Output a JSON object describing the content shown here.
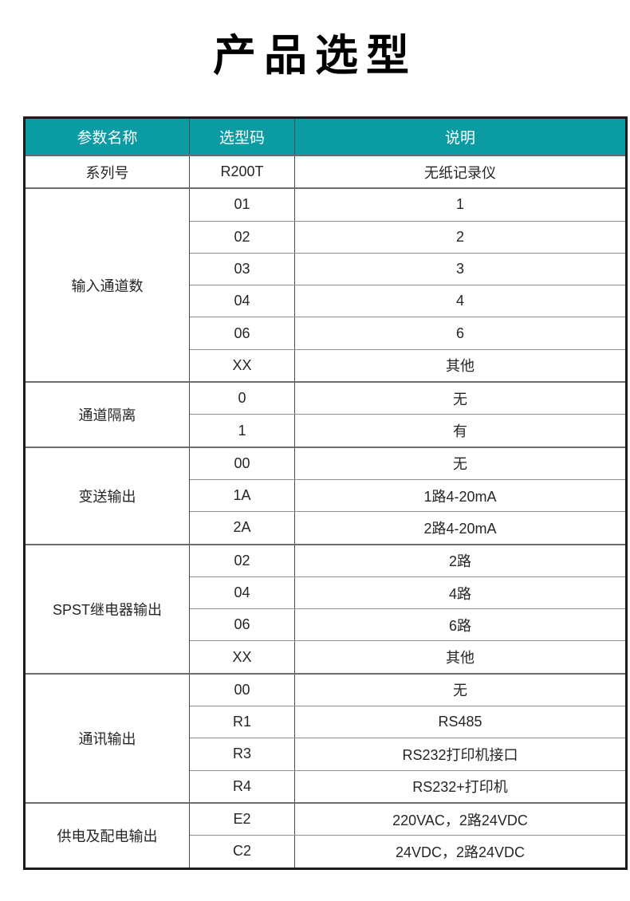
{
  "page": {
    "title": "产品选型"
  },
  "colors": {
    "header_bg": "#0a9ba3",
    "header_text": "#ffffff",
    "outer_border": "#1c1c1c",
    "grid_line": "#8e8e8e",
    "cell_text": "#262626"
  },
  "table": {
    "headers": {
      "param": "参数名称",
      "code": "选型码",
      "desc": "说明"
    },
    "rows": [
      {
        "param": "系列号",
        "options": [
          {
            "code": "R200T",
            "desc": "无纸记录仪"
          }
        ]
      },
      {
        "param": "输入通道数",
        "options": [
          {
            "code": "01",
            "desc": "1"
          },
          {
            "code": "02",
            "desc": "2"
          },
          {
            "code": "03",
            "desc": "3"
          },
          {
            "code": "04",
            "desc": "4"
          },
          {
            "code": "06",
            "desc": "6"
          },
          {
            "code": "XX",
            "desc": "其他"
          }
        ]
      },
      {
        "param": "通道隔离",
        "options": [
          {
            "code": "0",
            "desc": "无"
          },
          {
            "code": "1",
            "desc": "有"
          }
        ]
      },
      {
        "param": "变送输出",
        "options": [
          {
            "code": "00",
            "desc": "无"
          },
          {
            "code": "1A",
            "desc": "1路4-20mA"
          },
          {
            "code": "2A",
            "desc": "2路4-20mA"
          }
        ]
      },
      {
        "param": "SPST继电器输出",
        "options": [
          {
            "code": "02",
            "desc": "2路"
          },
          {
            "code": "04",
            "desc": "4路"
          },
          {
            "code": "06",
            "desc": "6路"
          },
          {
            "code": "XX",
            "desc": "其他"
          }
        ]
      },
      {
        "param": "通讯输出",
        "options": [
          {
            "code": "00",
            "desc": "无"
          },
          {
            "code": "R1",
            "desc": "RS485"
          },
          {
            "code": "R3",
            "desc": "RS232打印机接口"
          },
          {
            "code": "R4",
            "desc": "RS232+打印机"
          }
        ]
      },
      {
        "param": "供电及配电输出",
        "options": [
          {
            "code": "E2",
            "desc": "220VAC，2路24VDC"
          },
          {
            "code": "C2",
            "desc": "24VDC，2路24VDC"
          }
        ]
      }
    ]
  }
}
